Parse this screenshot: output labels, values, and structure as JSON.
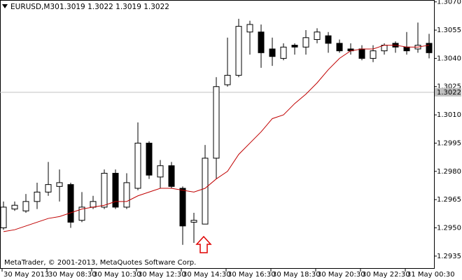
{
  "chart_data": {
    "type": "candlestick",
    "symbol": "EURUSD,M30",
    "quote": "1.3019 1.3022 1.3019 1.3022",
    "footer": "MetaTrader, © 2001-2013, MetaQuotes Software Corp.",
    "categories": [
      "30 May 2013",
      null,
      null,
      null,
      "30 May 08:30",
      null,
      null,
      null,
      "30 May 10:30",
      null,
      null,
      null,
      "30 May 12:30",
      null,
      null,
      null,
      "30 May 14:30",
      null,
      null,
      null,
      "30 May 16:30",
      null,
      null,
      null,
      "30 May 18:30",
      null,
      null,
      null,
      "30 May 20:30",
      null,
      null,
      null,
      "30 May 22:30",
      null,
      null,
      null,
      "31 May 00:30",
      null,
      null
    ],
    "open": [
      1.295,
      1.296,
      1.2959,
      1.2964,
      1.2969,
      1.2972,
      1.2973,
      1.2954,
      1.2961,
      1.2961,
      1.2979,
      1.2961,
      1.2971,
      1.2995,
      1.2977,
      1.2983,
      1.2971,
      1.2953,
      1.2952,
      1.2987,
      1.3026,
      1.3031,
      1.3054,
      1.3054,
      1.3045,
      1.304,
      1.3047,
      1.3046,
      1.305,
      1.3052,
      1.3048,
      1.3045,
      1.3045,
      1.304,
      1.3044,
      1.3048,
      1.3046,
      1.3045,
      1.3048
    ],
    "high": [
      1.2964,
      1.2964,
      1.2968,
      1.2974,
      1.2985,
      1.2981,
      1.2974,
      1.2969,
      1.2967,
      1.2981,
      1.2981,
      1.2979,
      1.3006,
      1.2996,
      1.2986,
      1.2985,
      1.2972,
      1.2958,
      1.2994,
      1.303,
      1.3051,
      1.3061,
      1.306,
      1.3058,
      1.3051,
      1.3048,
      1.3048,
      1.3055,
      1.3056,
      1.3054,
      1.305,
      1.3048,
      1.3047,
      1.3047,
      1.3048,
      1.3049,
      1.3054,
      1.3059,
      1.3053
    ],
    "low": [
      1.2949,
      1.2959,
      1.2958,
      1.296,
      1.2967,
      1.2964,
      1.295,
      1.2953,
      1.296,
      1.296,
      1.296,
      1.296,
      1.297,
      1.2976,
      1.2971,
      1.2971,
      1.2941,
      1.2942,
      1.2952,
      1.2976,
      1.3025,
      1.303,
      1.3042,
      1.3035,
      1.3036,
      1.3039,
      1.3042,
      1.3042,
      1.3048,
      1.3043,
      1.3043,
      1.3042,
      1.3039,
      1.3038,
      1.3042,
      1.3043,
      1.3042,
      1.3043,
      1.304
    ],
    "close": [
      1.2961,
      1.2962,
      1.2964,
      1.2969,
      1.2973,
      1.2974,
      1.2953,
      1.2961,
      1.2964,
      1.2979,
      1.2961,
      1.2974,
      1.2995,
      1.2978,
      1.2983,
      1.2972,
      1.2951,
      1.2954,
      1.2987,
      1.3025,
      1.3031,
      1.3057,
      1.3058,
      1.3043,
      1.3041,
      1.3046,
      1.3046,
      1.3051,
      1.3054,
      1.3048,
      1.3044,
      1.3044,
      1.304,
      1.3044,
      1.3047,
      1.3046,
      1.3044,
      1.3047,
      1.3043
    ],
    "ma": {
      "color": "#c00000",
      "values": [
        1.2948,
        1.2949,
        1.2951,
        1.2953,
        1.2955,
        1.2956,
        1.2958,
        1.296,
        1.2961,
        1.2962,
        1.2964,
        1.2964,
        1.2967,
        1.2969,
        1.2971,
        1.2971,
        1.297,
        1.2969,
        1.2971,
        1.2976,
        1.298,
        1.2989,
        1.2995,
        1.3001,
        1.3008,
        1.301,
        1.3016,
        1.3021,
        1.3027,
        1.3034,
        1.304,
        1.3044,
        1.3045,
        1.3045,
        1.3047,
        1.3047,
        1.3046,
        1.3046,
        1.3047
      ]
    },
    "bid_line": 1.3022,
    "ylim": [
      1.2929,
      1.3071
    ],
    "yticks": [
      {
        "value": 1.307,
        "label": "1.3070"
      },
      1.3055,
      {
        "value": 1.304,
        "label": "1.3040"
      },
      1.3025,
      {
        "value": 1.301,
        "label": "1.3010"
      },
      1.2995,
      {
        "value": 1.298,
        "label": "1.2980"
      },
      1.2965,
      {
        "value": 1.295,
        "label": "1.2950"
      },
      1.2935
    ],
    "up_color": "#ffffff",
    "down_color": "#000000"
  }
}
